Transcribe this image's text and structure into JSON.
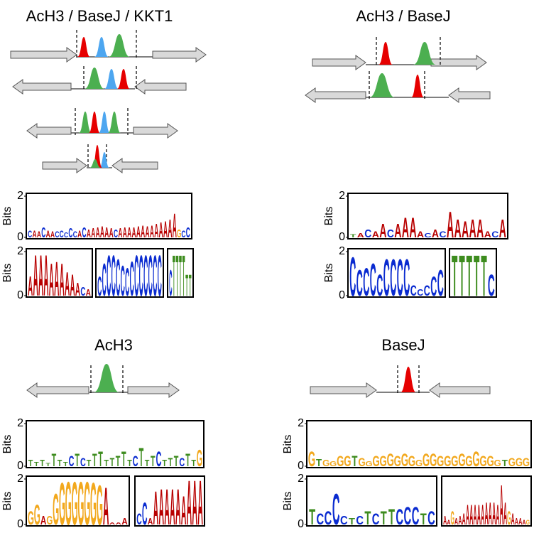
{
  "letter_colors": {
    "A": "#b80000",
    "C": "#0a2bd0",
    "G": "#f2a81d",
    "T": "#3d8c1e"
  },
  "panels": [
    {
      "title": "AcH3 / BaseJ / KKT1",
      "logos": [
        {
          "ylabel": "Bits",
          "yticks": [
            0,
            2
          ],
          "ylim": [
            0,
            2
          ],
          "letters": [
            "C",
            "A",
            "A",
            "C",
            "A",
            "A",
            "C",
            "C",
            "C",
            "C",
            "C",
            "A",
            "C",
            "A",
            "A",
            "A",
            "A",
            "A",
            "A",
            "C",
            "A",
            "A",
            "A",
            "A",
            "A",
            "A",
            "A",
            "A",
            "A",
            "A",
            "A",
            "A",
            "A",
            "G",
            "C",
            "C"
          ],
          "heights": [
            0.35,
            0.35,
            0.3,
            0.5,
            0.35,
            0.3,
            0.3,
            0.35,
            0.25,
            0.45,
            0.3,
            0.35,
            0.5,
            0.4,
            0.45,
            0.5,
            0.55,
            0.5,
            0.45,
            0.4,
            0.45,
            0.5,
            0.5,
            0.5,
            0.55,
            0.6,
            0.55,
            0.6,
            0.7,
            0.75,
            0.8,
            0.9,
            1.2,
            0.4,
            0.35,
            0.5
          ]
        },
        {
          "ylabel": "Bits",
          "yticks": [
            0,
            2
          ],
          "ylim": [
            0,
            2
          ],
          "letters": [
            "A",
            "A",
            "A",
            "A",
            "A",
            "A",
            "A",
            "A",
            "A",
            "A",
            "C",
            "A"
          ],
          "heights": [
            0.9,
            1.9,
            1.9,
            1.9,
            1.5,
            1.6,
            1.5,
            1.1,
            1.0,
            0.6,
            0.4,
            0.3
          ]
        },
        {
          "ylim": [
            0,
            2
          ],
          "letters": [
            "C",
            "C",
            "C",
            "C",
            "C",
            "C",
            "C",
            "C",
            "C",
            "C",
            "C",
            "C",
            "C",
            "C"
          ],
          "heights": [
            0.9,
            1.5,
            1.9,
            1.9,
            1.7,
            1.4,
            1.3,
            1.6,
            1.9,
            1.9,
            1.9,
            1.9,
            1.9,
            1.9
          ]
        },
        {
          "ylim": [
            0,
            2
          ],
          "letters": [
            "C",
            "T",
            "T",
            "T",
            "T",
            "T",
            "T"
          ],
          "heights": [
            1.2,
            1.9,
            1.9,
            1.9,
            1.9,
            1.0,
            1.0
          ]
        }
      ]
    },
    {
      "title": "AcH3 / BaseJ",
      "logos": [
        {
          "ylabel": "Bits",
          "yticks": [
            0,
            2
          ],
          "ylim": [
            0,
            2
          ],
          "letters": [
            "T",
            "A",
            "C",
            "A",
            "A",
            "C",
            "A",
            "A",
            "A",
            "A",
            "C",
            "A",
            "C",
            "A",
            "A",
            "A",
            "A",
            "A",
            "A",
            "C",
            "A"
          ],
          "heights": [
            0.15,
            0.2,
            0.4,
            0.3,
            0.7,
            0.4,
            0.7,
            1.0,
            1.0,
            0.3,
            0.2,
            0.4,
            0.3,
            1.3,
            0.9,
            0.8,
            0.9,
            0.9,
            0.3,
            0.3,
            0.9
          ]
        },
        {
          "ylabel": "Bits",
          "yticks": [
            0,
            2
          ],
          "ylim": [
            0,
            2
          ],
          "letters": [
            "C",
            "C",
            "C",
            "C",
            "C",
            "C",
            "C",
            "C",
            "C",
            "C",
            "C",
            "C",
            "C",
            "C"
          ],
          "heights": [
            1.8,
            1.2,
            1.3,
            1.5,
            1.0,
            1.7,
            1.7,
            1.7,
            1.7,
            0.5,
            0.3,
            0.5,
            0.9,
            1.2
          ]
        },
        {
          "ylim": [
            0,
            2
          ],
          "letters": [
            "T",
            "T",
            "T",
            "T",
            "T",
            "C"
          ],
          "heights": [
            1.9,
            1.9,
            1.9,
            1.9,
            1.9,
            1.0
          ]
        }
      ]
    },
    {
      "title": "AcH3",
      "logos": [
        {
          "ylabel": "Bits",
          "yticks": [
            0,
            2
          ],
          "ylim": [
            0,
            2
          ],
          "letters": [
            "T",
            "T",
            "T",
            "T",
            "T",
            "T",
            "T",
            "C",
            "T",
            "C",
            "T",
            "T",
            "T",
            "T",
            "T",
            "T",
            "T",
            "T",
            "C",
            "T",
            "T",
            "T",
            "C",
            "T",
            "T",
            "T",
            "C",
            "T",
            "T",
            "G"
          ],
          "heights": [
            0.3,
            0.2,
            0.3,
            0.15,
            0.6,
            0.3,
            0.2,
            0.5,
            0.6,
            0.4,
            0.3,
            0.6,
            0.7,
            0.3,
            0.4,
            0.5,
            0.7,
            0.3,
            0.5,
            0.9,
            0.3,
            0.5,
            0.7,
            0.3,
            0.4,
            0.5,
            0.4,
            0.6,
            0.3,
            0.8
          ]
        },
        {
          "ylabel": "Bits",
          "yticks": [
            0,
            2
          ],
          "ylim": [
            0,
            2
          ],
          "letters": [
            "G",
            "G",
            "A",
            "G",
            "G",
            "G",
            "G",
            "G",
            "G",
            "G",
            "G",
            "G",
            "A",
            "A",
            "A",
            "A"
          ],
          "heights": [
            0.6,
            0.9,
            0.4,
            0.4,
            1.4,
            1.9,
            1.95,
            1.95,
            1.95,
            1.95,
            1.9,
            1.8,
            1.7,
            0.1,
            0.1,
            0.3
          ]
        },
        {
          "ylim": [
            0,
            2
          ],
          "letters": [
            "C",
            "C",
            "A",
            "A",
            "A",
            "A",
            "A",
            "A",
            "A",
            "A",
            "A",
            "A"
          ],
          "heights": [
            0.5,
            1.0,
            0.3,
            1.5,
            1.6,
            1.6,
            1.6,
            1.6,
            1.3,
            2.0,
            2.0,
            2.0
          ]
        }
      ]
    },
    {
      "title": "BaseJ",
      "logos": [
        {
          "ylabel": "Bits",
          "yticks": [
            0,
            2
          ],
          "ylim": [
            0,
            2
          ],
          "letters": [
            "G",
            "T",
            "G",
            "G",
            "G",
            "G",
            "T",
            "G",
            "G",
            "G",
            "G",
            "G",
            "G",
            "G",
            "G",
            "G",
            "G",
            "G",
            "G",
            "G",
            "G",
            "G",
            "G",
            "G",
            "G",
            "G",
            "G",
            "T",
            "G",
            "G",
            "G"
          ],
          "heights": [
            0.7,
            0.35,
            0.3,
            0.25,
            0.5,
            0.5,
            0.5,
            0.4,
            0.25,
            0.5,
            0.5,
            0.6,
            0.5,
            0.6,
            0.5,
            0.3,
            0.6,
            0.6,
            0.5,
            0.5,
            0.5,
            0.6,
            0.5,
            0.7,
            0.5,
            0.5,
            0.3,
            0.3,
            0.4,
            0.4,
            0.4
          ]
        },
        {
          "ylabel": "Bits",
          "yticks": [
            0,
            2
          ],
          "ylim": [
            0,
            2
          ],
          "letters": [
            "T",
            "C",
            "C",
            "C",
            "C",
            "T",
            "C",
            "T",
            "C",
            "T",
            "T",
            "C",
            "C",
            "C",
            "T",
            "C"
          ],
          "heights": [
            0.7,
            0.5,
            0.6,
            1.4,
            0.4,
            0.3,
            0.4,
            0.6,
            0.5,
            0.6,
            0.7,
            0.7,
            0.8,
            0.8,
            0.5,
            0.6
          ]
        },
        {
          "ylim": [
            0,
            2
          ],
          "letters": [
            "A",
            "A",
            "G",
            "A",
            "A",
            "A",
            "A",
            "A",
            "A",
            "A",
            "A",
            "A",
            "A",
            "A",
            "A",
            "A",
            "A",
            "G",
            "A",
            "A",
            "A",
            "A",
            "G"
          ],
          "heights": [
            0.4,
            0.2,
            0.6,
            0.3,
            0.4,
            0.5,
            0.9,
            0.9,
            0.9,
            0.9,
            0.9,
            1.0,
            1.0,
            1.0,
            0.9,
            1.8,
            1.0,
            0.6,
            0.5,
            0.3,
            0.3,
            0.2,
            0.2
          ]
        }
      ]
    }
  ]
}
